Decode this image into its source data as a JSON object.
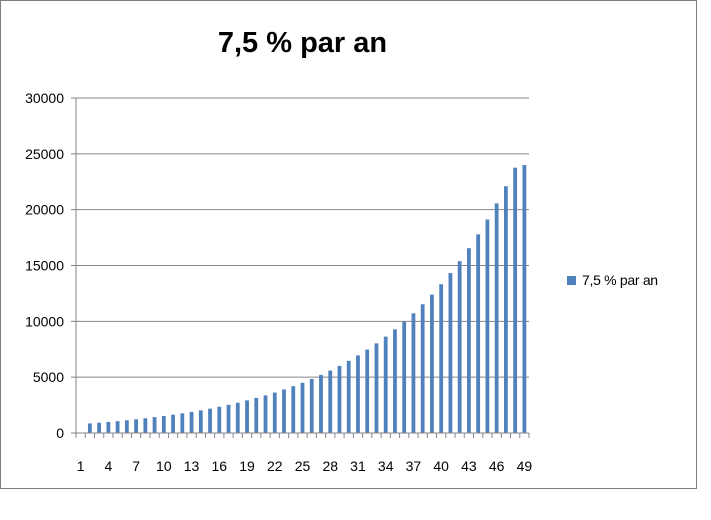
{
  "chart_data": {
    "type": "bar",
    "title": "7,5 % par an",
    "xlabel": "",
    "ylabel": "",
    "ylim": [
      0,
      30000
    ],
    "yticks": [
      0,
      5000,
      10000,
      15000,
      20000,
      25000,
      30000
    ],
    "xtick_labels": [
      "1",
      "4",
      "7",
      "10",
      "13",
      "16",
      "19",
      "22",
      "25",
      "28",
      "31",
      "34",
      "37",
      "40",
      "43",
      "46",
      "49"
    ],
    "categories": [
      1,
      2,
      3,
      4,
      5,
      6,
      7,
      8,
      9,
      10,
      11,
      12,
      13,
      14,
      15,
      16,
      17,
      18,
      19,
      20,
      21,
      22,
      23,
      24,
      25,
      26,
      27,
      28,
      29,
      30,
      31,
      32,
      33,
      34,
      35,
      36,
      37,
      38,
      39,
      40,
      41,
      42,
      43,
      44,
      45,
      46,
      47,
      48,
      49
    ],
    "grid": true,
    "legend_position": "right",
    "series": [
      {
        "name": "7,5 % par an",
        "color": "#4f81bd",
        "values": [
          0,
          860,
          920,
          990,
          1060,
          1140,
          1230,
          1320,
          1420,
          1520,
          1640,
          1760,
          1890,
          2030,
          2180,
          2350,
          2520,
          2710,
          2920,
          3140,
          3370,
          3620,
          3900,
          4190,
          4500,
          4840,
          5200,
          5590,
          6010,
          6460,
          6950,
          7470,
          8030,
          8630,
          9280,
          9980,
          10720,
          11530,
          12390,
          13320,
          14320,
          15390,
          16550,
          17790,
          19120,
          20560,
          22100,
          23760,
          24000
        ]
      }
    ]
  }
}
